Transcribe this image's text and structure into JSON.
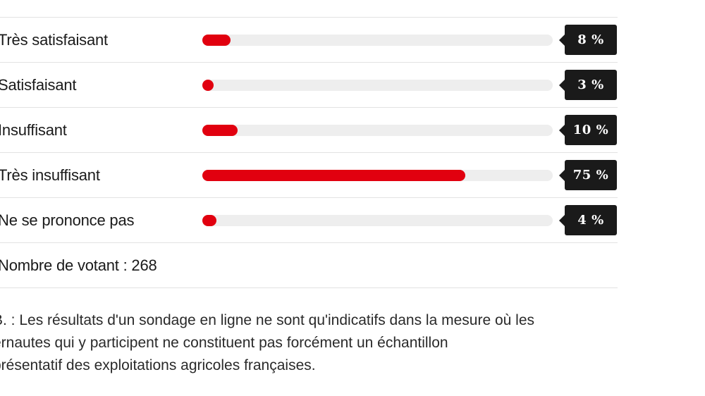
{
  "chart_data": {
    "type": "bar",
    "orientation": "horizontal",
    "categories": [
      "Très satisfaisant",
      "Satisfaisant",
      "Insuffisant",
      "Très insuffisant",
      "Ne se prononce pas"
    ],
    "values": [
      8,
      3,
      10,
      75,
      4
    ],
    "value_labels": [
      "8 %",
      "3 %",
      "10 %",
      "75 %",
      "4 %"
    ],
    "unit": "%",
    "xlim": [
      0,
      100
    ],
    "colors": {
      "bar": "#e1000f",
      "track": "#eeeeee",
      "badge": "#1a1a1a"
    }
  },
  "poll": {
    "voters_text": "Nombre de votant : 268"
  },
  "note": {
    "lines": [
      "B. : Les résultats d'un sondage en ligne ne sont qu'indicatifs dans la mesure où les",
      "ernautes qui y participent ne constituent pas forcément un échantillon",
      "présentatif des exploitations agricoles françaises."
    ]
  }
}
